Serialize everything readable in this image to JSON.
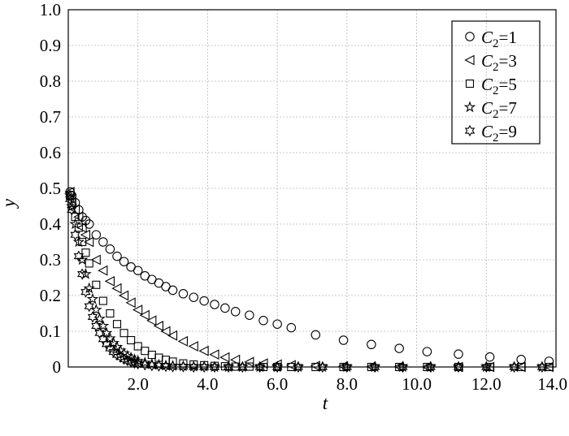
{
  "chart_data": {
    "type": "scatter",
    "xlabel": "t",
    "ylabel": "y",
    "xlim": [
      0,
      14.0
    ],
    "ylim": [
      0,
      1.0
    ],
    "x_ticks": [
      "2.0",
      "4.0",
      "6.0",
      "8.0",
      "10.0",
      "12.0",
      "14.0"
    ],
    "y_ticks": [
      "0",
      "0.1",
      "0.2",
      "0.3",
      "0.4",
      "0.5",
      "0.6",
      "0.7",
      "0.8",
      "0.9",
      "1.0"
    ],
    "grid": true,
    "legend_position": "top-right",
    "series": [
      {
        "name": "C2=1",
        "legend_base": "C",
        "legend_sub": "2",
        "legend_value": "=1",
        "marker": "circle",
        "x": [
          0.05,
          0.1,
          0.2,
          0.3,
          0.4,
          0.5,
          0.6,
          0.8,
          1.0,
          1.2,
          1.4,
          1.6,
          1.8,
          2.0,
          2.2,
          2.4,
          2.6,
          2.8,
          3.0,
          3.3,
          3.6,
          3.9,
          4.2,
          4.5,
          4.8,
          5.2,
          5.6,
          6.0,
          6.4,
          7.1,
          7.9,
          8.7,
          9.5,
          10.3,
          11.2,
          12.1,
          13.0,
          13.8
        ],
        "y": [
          0.49,
          0.48,
          0.46,
          0.44,
          0.42,
          0.41,
          0.4,
          0.37,
          0.35,
          0.33,
          0.31,
          0.295,
          0.28,
          0.27,
          0.255,
          0.245,
          0.235,
          0.225,
          0.215,
          0.205,
          0.195,
          0.185,
          0.175,
          0.165,
          0.155,
          0.145,
          0.13,
          0.12,
          0.11,
          0.09,
          0.075,
          0.063,
          0.052,
          0.043,
          0.036,
          0.028,
          0.021,
          0.016
        ]
      },
      {
        "name": "C2=3",
        "legend_base": "C",
        "legend_sub": "2",
        "legend_value": "=3",
        "marker": "triangle",
        "x": [
          0.05,
          0.1,
          0.2,
          0.3,
          0.4,
          0.5,
          0.6,
          0.8,
          1.0,
          1.2,
          1.4,
          1.6,
          1.8,
          2.0,
          2.2,
          2.4,
          2.6,
          2.8,
          3.0,
          3.3,
          3.6,
          3.9,
          4.2,
          4.5,
          4.8,
          5.2,
          5.6,
          6.0,
          6.4,
          7.1,
          7.9,
          8.7,
          9.5,
          10.3,
          11.2,
          12.1,
          13.0,
          13.8
        ],
        "y": [
          0.49,
          0.47,
          0.44,
          0.42,
          0.39,
          0.37,
          0.35,
          0.3,
          0.27,
          0.24,
          0.22,
          0.2,
          0.18,
          0.16,
          0.145,
          0.13,
          0.115,
          0.1,
          0.088,
          0.072,
          0.058,
          0.045,
          0.035,
          0.027,
          0.02,
          0.014,
          0.01,
          0.007,
          0.005,
          0.003,
          0.002,
          0.001,
          0.001,
          0,
          0,
          0,
          0,
          0
        ]
      },
      {
        "name": "C2=5",
        "legend_base": "C",
        "legend_sub": "2",
        "legend_value": "=5",
        "marker": "square",
        "x": [
          0.05,
          0.1,
          0.2,
          0.3,
          0.4,
          0.5,
          0.6,
          0.8,
          1.0,
          1.2,
          1.4,
          1.6,
          1.8,
          2.0,
          2.2,
          2.4,
          2.6,
          2.8,
          3.0,
          3.3,
          3.6,
          3.9,
          4.2,
          4.5,
          4.8,
          5.2,
          5.6,
          6.0,
          6.4,
          7.1,
          7.9,
          8.7,
          9.5,
          10.3,
          11.2,
          12.1,
          13.0,
          13.8
        ],
        "y": [
          0.48,
          0.46,
          0.42,
          0.39,
          0.35,
          0.32,
          0.29,
          0.23,
          0.185,
          0.15,
          0.12,
          0.095,
          0.075,
          0.058,
          0.045,
          0.034,
          0.026,
          0.02,
          0.015,
          0.01,
          0.007,
          0.005,
          0.003,
          0.002,
          0.001,
          0.001,
          0,
          0,
          0,
          0,
          0,
          0,
          0,
          0,
          0,
          0,
          0,
          0
        ]
      },
      {
        "name": "C2=7",
        "legend_base": "C",
        "legend_sub": "2",
        "legend_value": "=7",
        "marker": "star",
        "x": [
          0.05,
          0.1,
          0.2,
          0.3,
          0.4,
          0.5,
          0.6,
          0.7,
          0.8,
          0.9,
          1.0,
          1.1,
          1.2,
          1.3,
          1.4,
          1.5,
          1.6,
          1.7,
          1.8,
          1.9,
          2.0,
          2.2,
          2.4,
          2.6,
          2.8,
          3.0,
          3.3,
          3.6,
          3.9,
          4.2,
          4.6,
          5.0,
          5.5,
          6.0,
          6.6,
          7.3,
          8.0,
          8.8,
          9.6,
          10.4,
          11.2,
          12.0,
          12.8,
          13.6
        ],
        "y": [
          0.48,
          0.45,
          0.4,
          0.35,
          0.3,
          0.26,
          0.22,
          0.19,
          0.16,
          0.135,
          0.115,
          0.095,
          0.08,
          0.067,
          0.056,
          0.046,
          0.038,
          0.031,
          0.026,
          0.021,
          0.017,
          0.012,
          0.008,
          0.006,
          0.004,
          0.003,
          0.002,
          0.001,
          0.001,
          0,
          0,
          0,
          0,
          0,
          0,
          0,
          0,
          0,
          0,
          0,
          0,
          0,
          0,
          0
        ]
      },
      {
        "name": "C2=9",
        "legend_base": "C",
        "legend_sub": "2",
        "legend_value": "=9",
        "marker": "hexagram",
        "x": [
          0.05,
          0.1,
          0.2,
          0.3,
          0.4,
          0.5,
          0.6,
          0.7,
          0.8,
          0.9,
          1.0,
          1.1,
          1.2,
          1.3,
          1.4,
          1.5,
          1.6,
          1.7,
          1.8,
          1.9,
          2.0,
          2.2,
          2.4,
          2.6,
          2.8,
          3.0,
          3.3,
          3.6,
          3.9,
          4.2,
          4.6,
          5.0,
          5.5,
          6.0,
          6.6,
          7.3,
          8.0,
          8.8,
          9.6,
          10.4,
          11.2,
          12.0,
          12.8,
          13.6
        ],
        "y": [
          0.47,
          0.44,
          0.37,
          0.31,
          0.26,
          0.21,
          0.17,
          0.14,
          0.115,
          0.095,
          0.078,
          0.064,
          0.052,
          0.042,
          0.034,
          0.028,
          0.022,
          0.018,
          0.014,
          0.011,
          0.009,
          0.006,
          0.004,
          0.003,
          0.002,
          0.001,
          0.001,
          0,
          0,
          0,
          0,
          0,
          0,
          0,
          0,
          0,
          0,
          0,
          0,
          0,
          0,
          0,
          0,
          0
        ]
      }
    ]
  }
}
